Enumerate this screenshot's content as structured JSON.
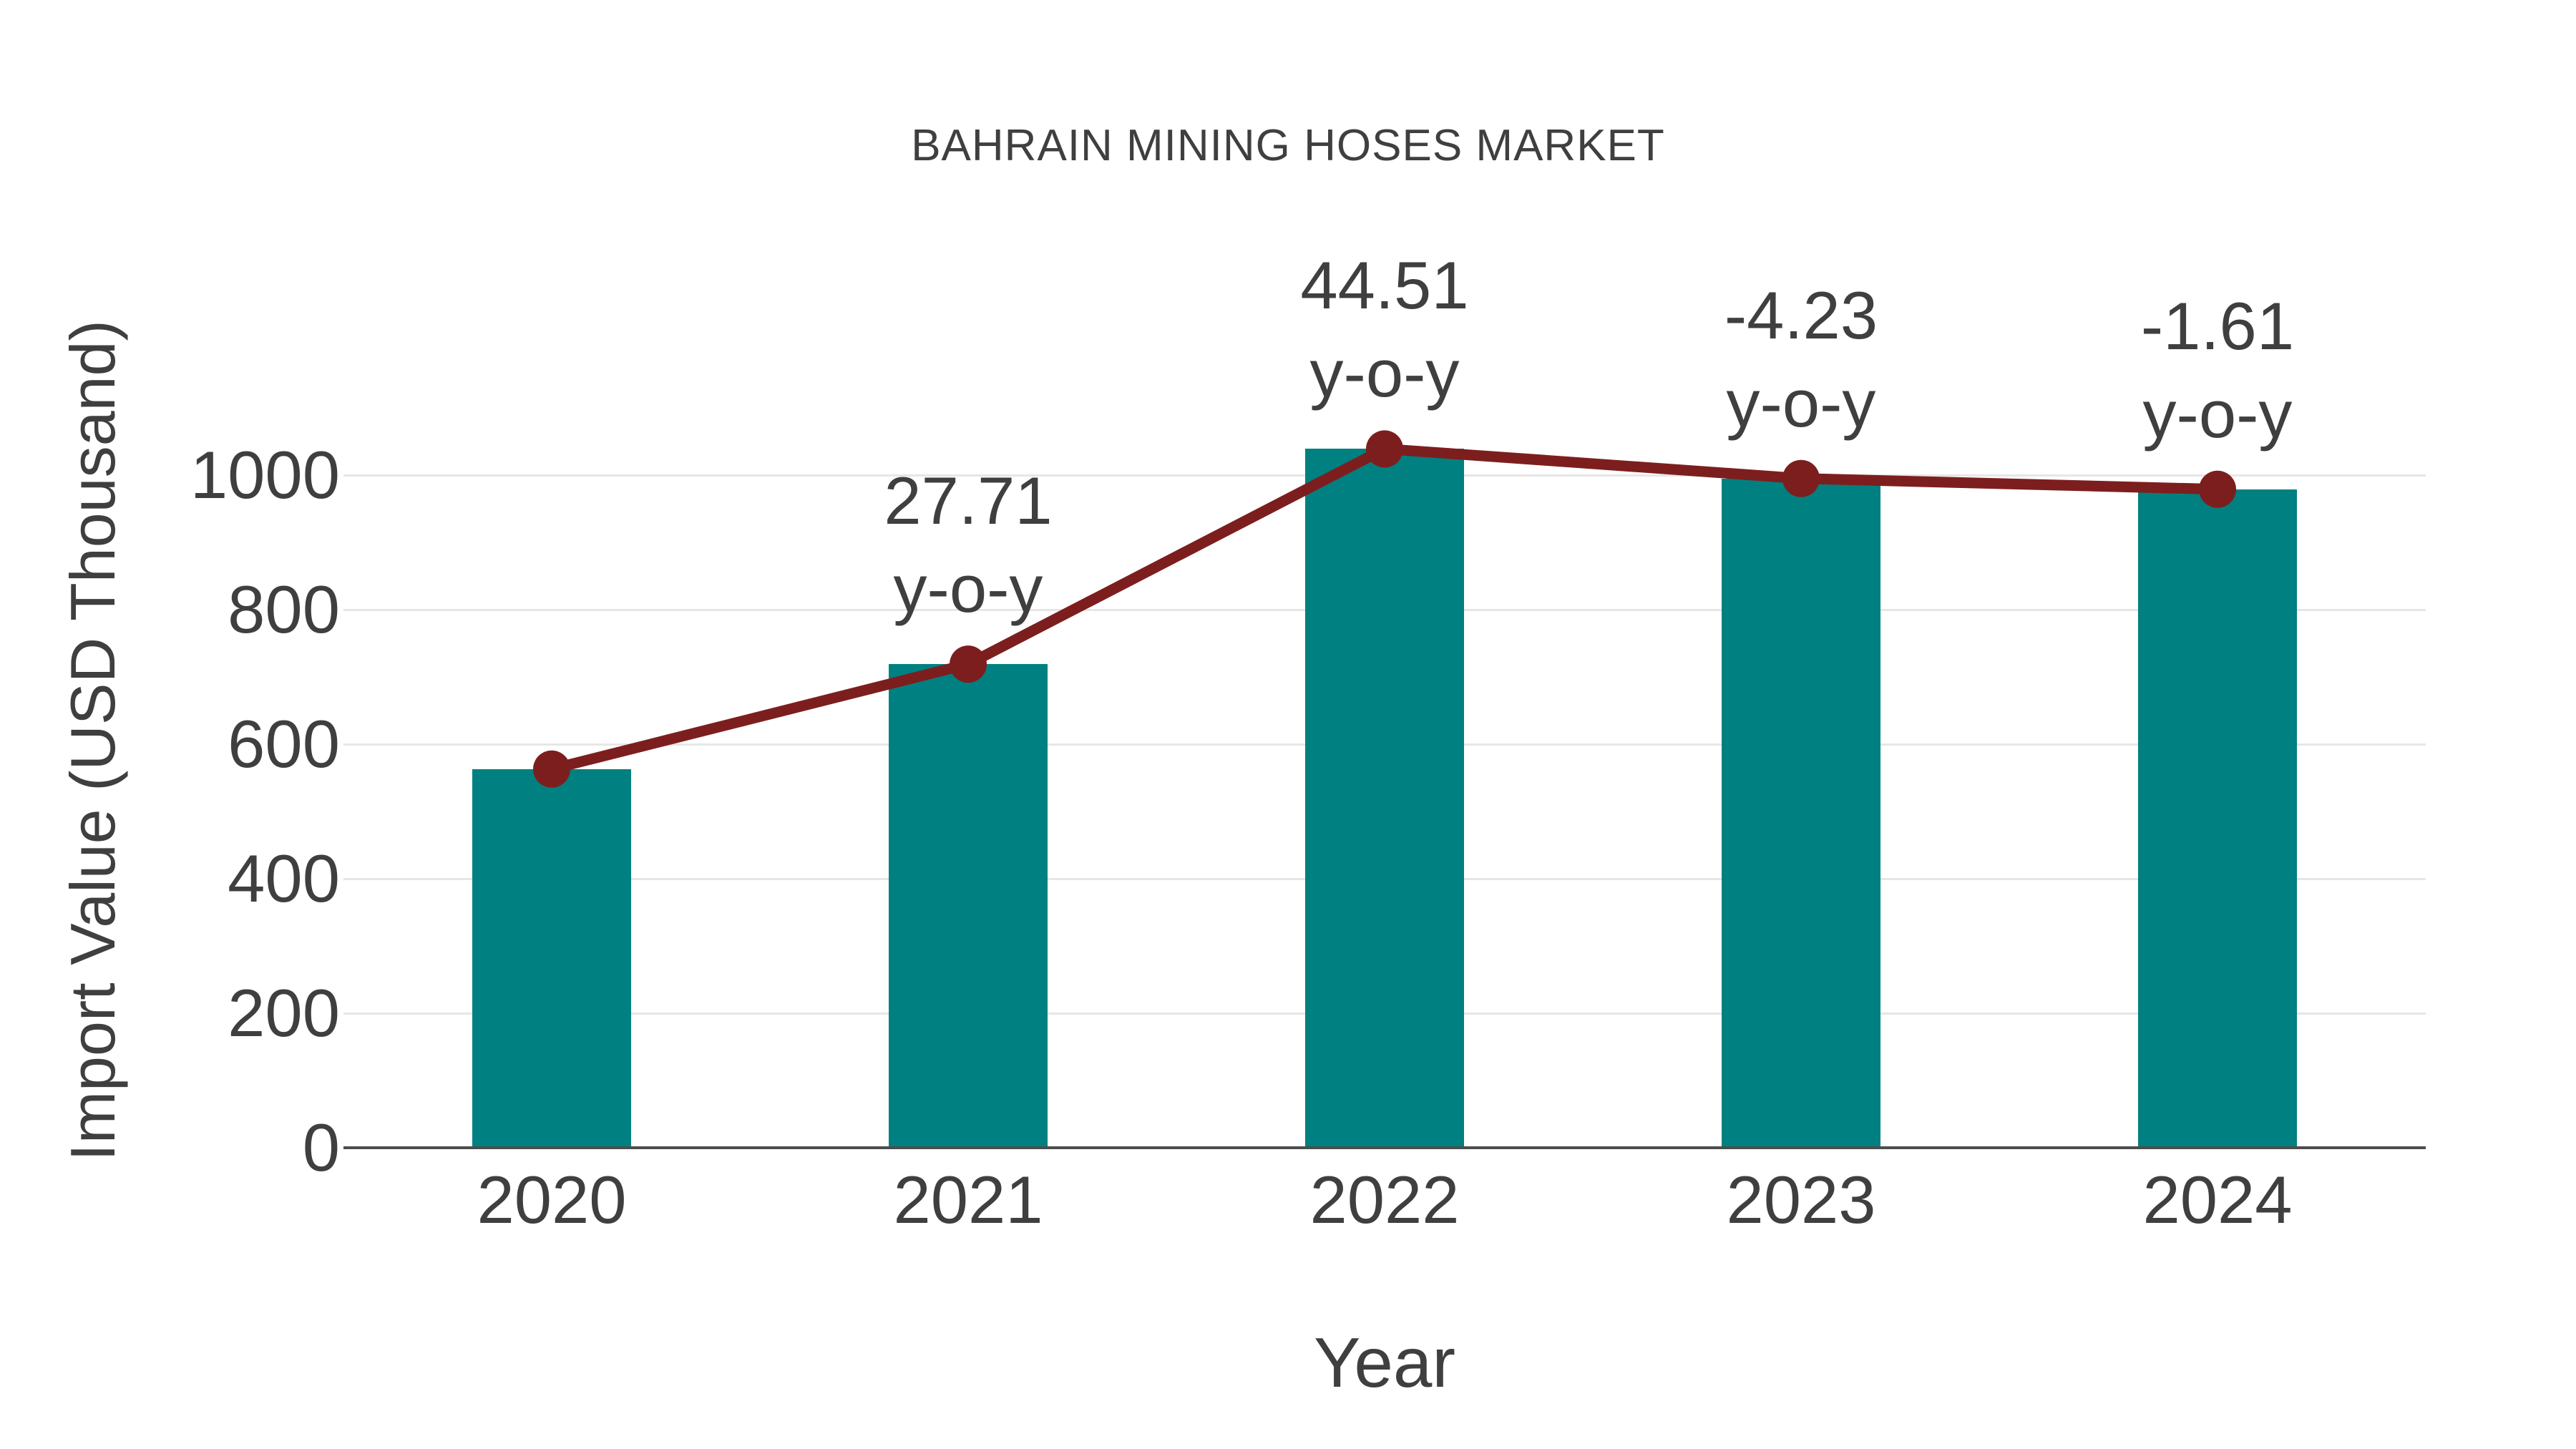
{
  "chart_data": {
    "type": "bar",
    "title": "BAHRAIN MINING HOSES MARKET",
    "xlabel": "Year",
    "ylabel": "Import Value (USD Thousand)",
    "categories": [
      "2020",
      "2021",
      "2022",
      "2023",
      "2024"
    ],
    "series": [
      {
        "name": "Import Value (USD Thousand)",
        "type": "bar",
        "values": [
          563,
          719,
          1039,
          995,
          979
        ],
        "color": "#008080"
      },
      {
        "name": "y-o-y trend line",
        "type": "line",
        "values": [
          563,
          719,
          1039,
          995,
          979
        ],
        "color": "#7d1e1e"
      }
    ],
    "annotations": [
      {
        "category": "2021",
        "value": "27.71",
        "suffix": "y-o-y"
      },
      {
        "category": "2022",
        "value": "44.51",
        "suffix": "y-o-y"
      },
      {
        "category": "2023",
        "value": "-4.23",
        "suffix": "y-o-y"
      },
      {
        "category": "2024",
        "value": "-1.61",
        "suffix": "y-o-y"
      }
    ],
    "yticks": [
      0,
      200,
      400,
      600,
      800,
      1000
    ],
    "ylim": [
      0,
      1100
    ],
    "grid": true,
    "legend_position": "none",
    "colors": {
      "bar": "#008080",
      "line": "#7d1e1e",
      "text": "#3f3f3f",
      "gridline": "#e6e6e6",
      "axis": "#4d4d4d",
      "background": "#ffffff"
    }
  }
}
